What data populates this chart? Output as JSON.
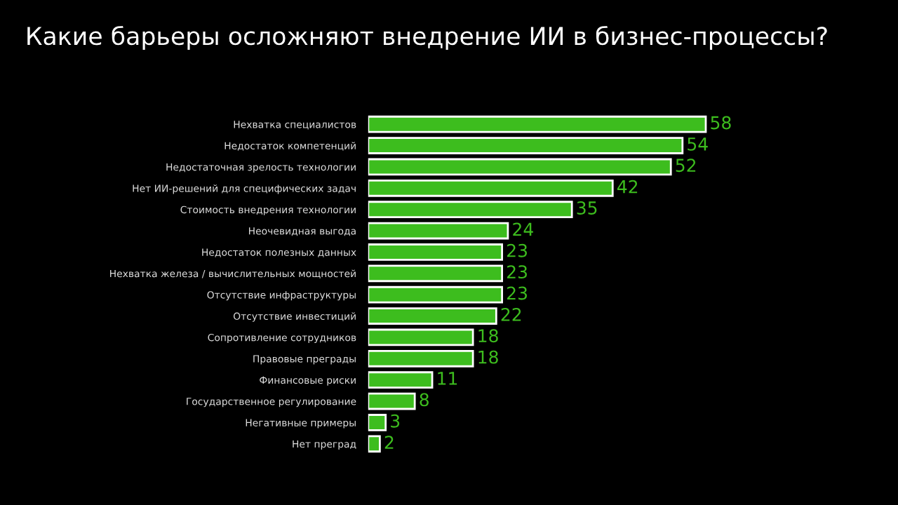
{
  "chart_data": {
    "type": "bar",
    "orientation": "horizontal",
    "title": "Какие барьеры осложняют внедрение ИИ в бизнес-процессы?",
    "categories": [
      "Нехватка специалистов",
      "Недостаток компетенций",
      "Недостаточная зрелость технологии",
      "Нет ИИ-решений для специфических задач",
      "Стоимость внедрения технологии",
      "Неочевидная выгода",
      "Недостаток полезных данных",
      "Нехватка железа / вычислительных мощностей",
      "Отсутствие инфраструктуры",
      "Отсутствие инвестиций",
      "Сопротивление сотрудников",
      "Правовые преграды",
      "Финансовые риски",
      "Государственное регулирование",
      "Негативные примеры",
      "Нет преград"
    ],
    "values": [
      58,
      54,
      52,
      42,
      35,
      24,
      23,
      23,
      23,
      22,
      18,
      18,
      11,
      8,
      3,
      2
    ],
    "color": "#3dbd1e",
    "data_labels": true,
    "grid": false,
    "legend": false,
    "tick_labels": "y"
  }
}
